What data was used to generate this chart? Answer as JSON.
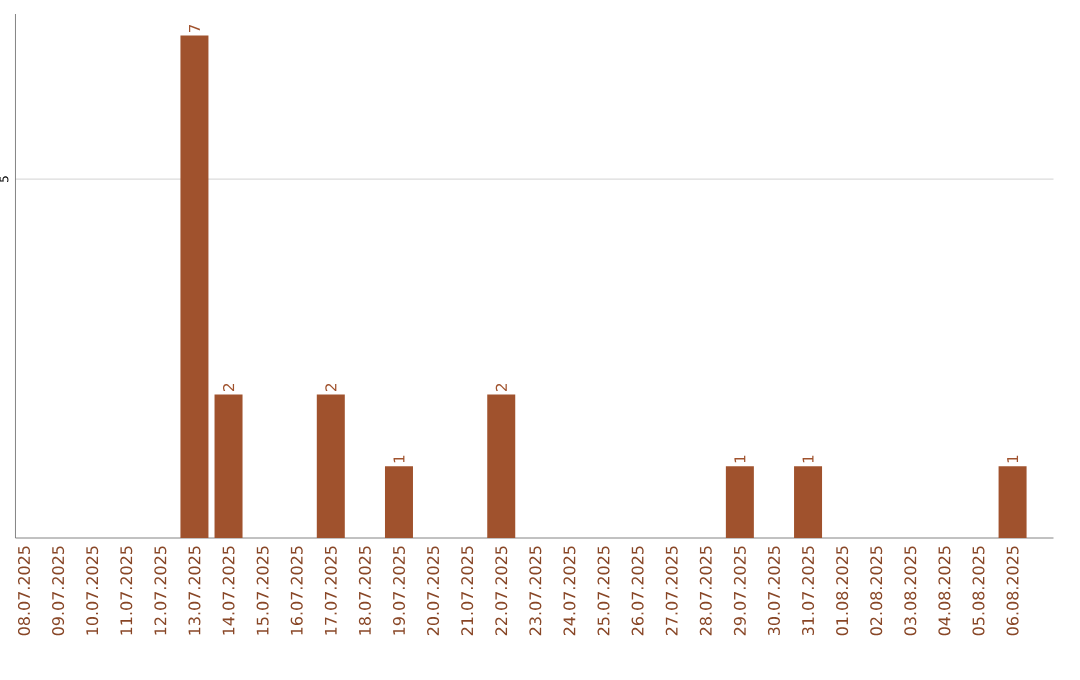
{
  "chart_data": {
    "type": "bar",
    "categories": [
      "08.07.2025",
      "09.07.2025",
      "10.07.2025",
      "11.07.2025",
      "12.07.2025",
      "13.07.2025",
      "14.07.2025",
      "15.07.2025",
      "16.07.2025",
      "17.07.2025",
      "18.07.2025",
      "19.07.2025",
      "20.07.2025",
      "21.07.2025",
      "22.07.2025",
      "23.07.2025",
      "24.07.2025",
      "25.07.2025",
      "26.07.2025",
      "27.07.2025",
      "28.07.2025",
      "29.07.2025",
      "30.07.2025",
      "31.07.2025",
      "01.08.2025",
      "02.08.2025",
      "03.08.2025",
      "04.08.2025",
      "05.08.2025",
      "06.08.2025"
    ],
    "values": [
      0,
      0,
      0,
      0,
      0,
      7,
      2,
      0,
      0,
      2,
      0,
      1,
      0,
      0,
      2,
      0,
      0,
      0,
      0,
      0,
      0,
      1,
      0,
      1,
      0,
      0,
      0,
      0,
      0,
      1
    ],
    "value_labels": [
      null,
      null,
      null,
      null,
      null,
      "7",
      "2",
      null,
      null,
      "2",
      null,
      "1",
      null,
      null,
      "2",
      null,
      null,
      null,
      null,
      null,
      null,
      "1",
      null,
      "1",
      null,
      null,
      null,
      null,
      null,
      "1"
    ],
    "color": "#a0522d",
    "ylim": [
      0,
      7.3
    ],
    "yticks": [
      5
    ],
    "grid": "y"
  }
}
